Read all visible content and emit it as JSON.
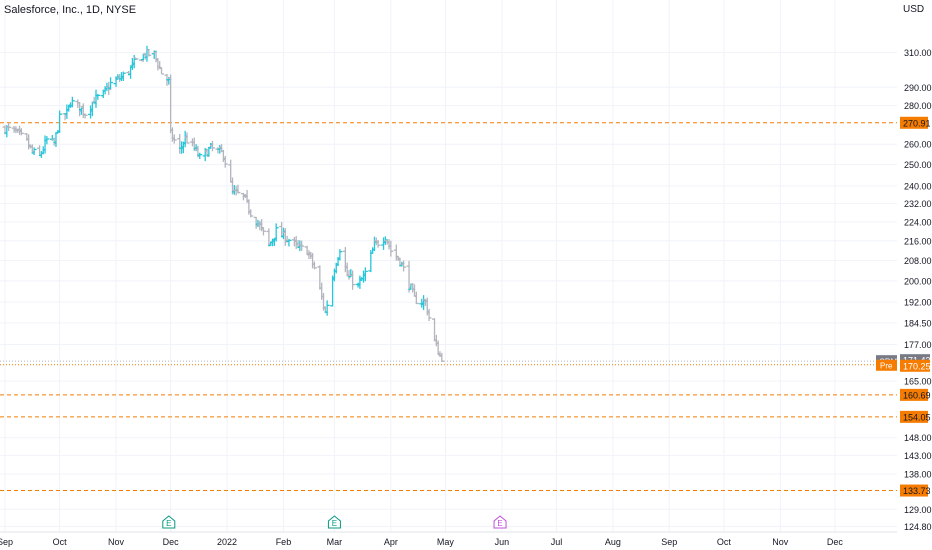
{
  "title": "Salesforce, Inc., 1D, NYSE",
  "currency": "USD",
  "colors": {
    "up": "#26c6da",
    "down": "#b2b5be",
    "level": "#f57c00",
    "grid": "#f0f3fa",
    "earnings": "#089981",
    "earnings_future": "#c04fd9",
    "text": "#131722",
    "tag_last": "#787b86"
  },
  "chart_data": {
    "type": "ohlc",
    "x_axis_labels": [
      "Sep",
      "Oct",
      "Nov",
      "Dec",
      "2022",
      "Feb",
      "Mar",
      "Apr",
      "May",
      "Jun",
      "Jul",
      "Aug",
      "Sep",
      "Oct",
      "Nov",
      "Dec"
    ],
    "y_axis_labels": [
      "310.00",
      "290.00",
      "280.00",
      "260.00",
      "250.00",
      "240.00",
      "232.00",
      "224.00",
      "216.00",
      "208.00",
      "200.00",
      "192.00",
      "184.50",
      "177.00",
      "165.00",
      "148.00",
      "143.00",
      "138.00",
      "129.00",
      "124.80"
    ],
    "y_scale": "log",
    "y_range": [
      123.5,
      330
    ],
    "x_range": [
      "2021-09-01",
      "2022-12-31"
    ],
    "grid": true,
    "price_levels": [
      "270.91",
      "160.69",
      "154.05",
      "133.73"
    ],
    "last_price": {
      "symbol": "CRM",
      "value": "171.43"
    },
    "pre_market": {
      "label": "Pre",
      "value": "170.25"
    },
    "earnings_markers": [
      {
        "label": "E",
        "date": "2021-11-30",
        "future": false
      },
      {
        "label": "E",
        "date": "2022-03-01",
        "future": false
      },
      {
        "label": "E",
        "date": "2022-05-31",
        "future": true
      }
    ],
    "anchors": [
      [
        "2021-09-01",
        268
      ],
      [
        "2021-09-07",
        266
      ],
      [
        "2021-09-13",
        261
      ],
      [
        "2021-09-16",
        256
      ],
      [
        "2021-09-20",
        254
      ],
      [
        "2021-09-24",
        262
      ],
      [
        "2021-09-28",
        260
      ],
      [
        "2021-10-01",
        273
      ],
      [
        "2021-10-05",
        276
      ],
      [
        "2021-10-07",
        282
      ],
      [
        "2021-10-12",
        279
      ],
      [
        "2021-10-15",
        276
      ],
      [
        "2021-10-20",
        283
      ],
      [
        "2021-10-25",
        286
      ],
      [
        "2021-10-29",
        292
      ],
      [
        "2021-11-03",
        295
      ],
      [
        "2021-11-08",
        299
      ],
      [
        "2021-11-12",
        305
      ],
      [
        "2021-11-17",
        309
      ],
      [
        "2021-11-22",
        309
      ],
      [
        "2021-11-26",
        298
      ],
      [
        "2021-11-30",
        293
      ],
      [
        "2021-12-01",
        265
      ],
      [
        "2021-12-06",
        257
      ],
      [
        "2021-12-09",
        263
      ],
      [
        "2021-12-14",
        258
      ],
      [
        "2021-12-17",
        253
      ],
      [
        "2021-12-23",
        258
      ],
      [
        "2021-12-30",
        255
      ],
      [
        "2022-01-04",
        237
      ],
      [
        "2022-01-10",
        235
      ],
      [
        "2022-01-14",
        228
      ],
      [
        "2022-01-19",
        222
      ],
      [
        "2022-01-24",
        214
      ],
      [
        "2022-01-28",
        220
      ],
      [
        "2022-02-03",
        217
      ],
      [
        "2022-02-09",
        213
      ],
      [
        "2022-02-14",
        212
      ],
      [
        "2022-02-18",
        205
      ],
      [
        "2022-02-24",
        188
      ],
      [
        "2022-03-01",
        205
      ],
      [
        "2022-03-04",
        213
      ],
      [
        "2022-03-08",
        202
      ],
      [
        "2022-03-14",
        198
      ],
      [
        "2022-03-18",
        203
      ],
      [
        "2022-03-23",
        214
      ],
      [
        "2022-03-29",
        218
      ],
      [
        "2022-04-01",
        212
      ],
      [
        "2022-04-06",
        208
      ],
      [
        "2022-04-11",
        199
      ],
      [
        "2022-04-14",
        193
      ],
      [
        "2022-04-20",
        192
      ],
      [
        "2022-04-25",
        178
      ],
      [
        "2022-04-29",
        171.43
      ]
    ]
  }
}
